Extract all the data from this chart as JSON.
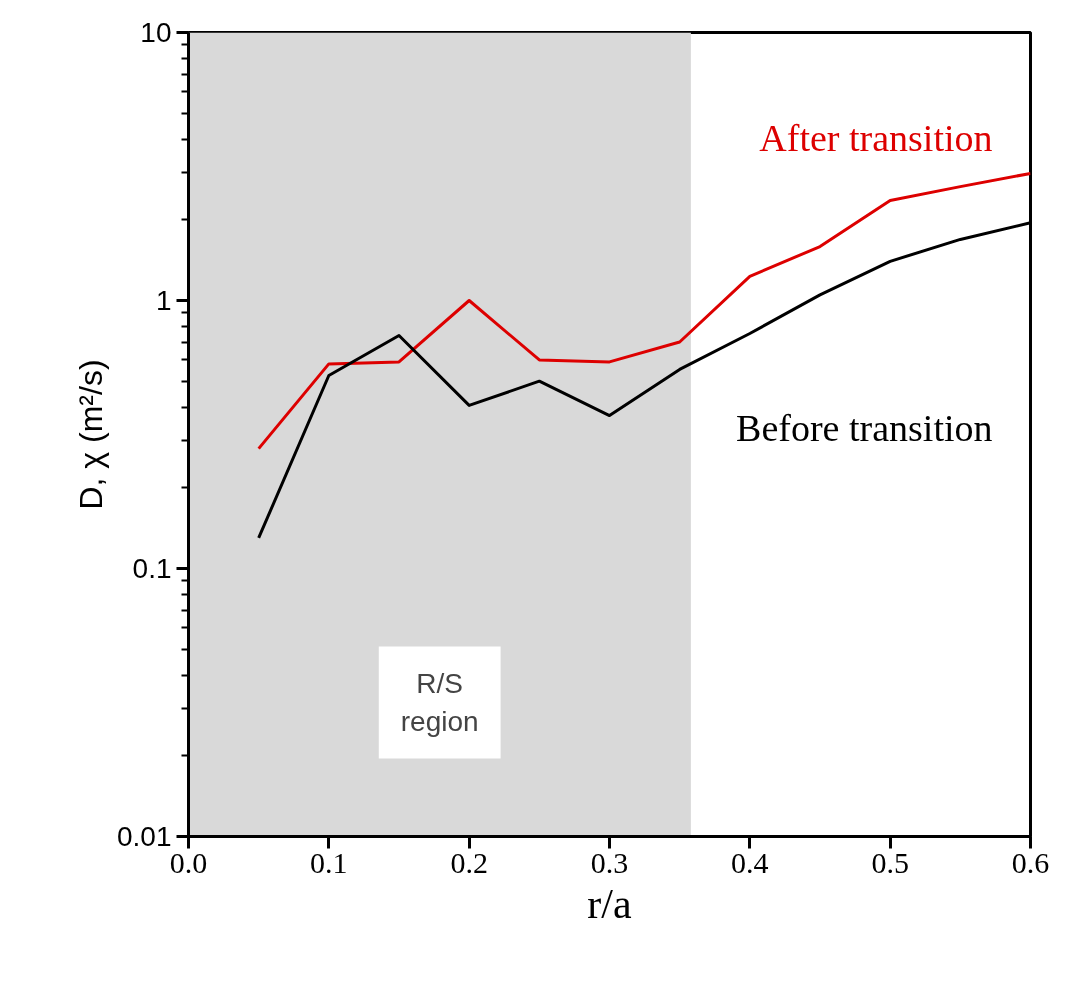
{
  "chart_data": {
    "type": "line",
    "xlabel": "r/a",
    "ylabel": "D, χ (m²/s)",
    "x": [
      0.05,
      0.1,
      0.15,
      0.2,
      0.25,
      0.3,
      0.35,
      0.4,
      0.45,
      0.5,
      0.55,
      0.6
    ],
    "series": [
      {
        "name": "After transition",
        "color": "#dd0000",
        "values": [
          0.28,
          0.58,
          0.59,
          1.0,
          0.6,
          0.59,
          0.7,
          1.23,
          1.59,
          2.36,
          2.66,
          2.98
        ]
      },
      {
        "name": "Before transition",
        "color": "#000000",
        "values": [
          0.13,
          0.525,
          0.74,
          0.406,
          0.5,
          0.372,
          0.553,
          0.753,
          1.05,
          1.4,
          1.69,
          1.95
        ]
      }
    ],
    "bands": [
      {
        "axis": "x",
        "from": 0,
        "to": 0.358,
        "label": "R/S\nregion",
        "color": "#d9d9d9"
      }
    ],
    "log": "y",
    "marker": "none",
    "line_style": "solid",
    "xlim": [
      0,
      0.6
    ],
    "ylim": [
      0.01,
      10
    ],
    "xticks": [
      {
        "value": 0,
        "label": "0.0"
      },
      0.1,
      0.2,
      0.3,
      0.4,
      0.5,
      0.6
    ],
    "yticks": [
      0.01,
      0.1,
      1,
      10
    ]
  }
}
